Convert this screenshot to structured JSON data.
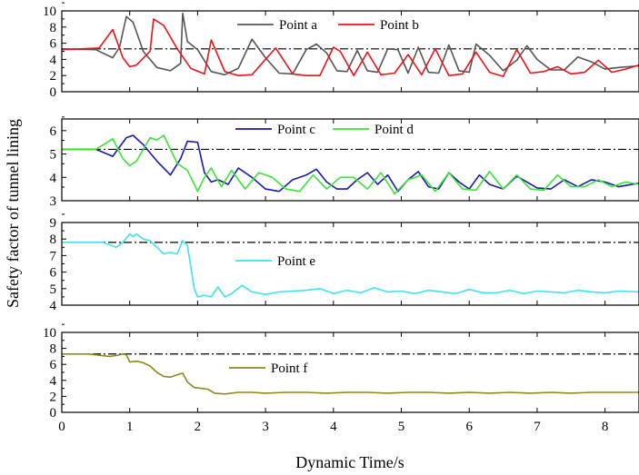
{
  "chart_data": {
    "type": "line",
    "xlabel": "Dynamic Time/s",
    "ylabel": "Safety factor of tunnel lining",
    "xlim": [
      0,
      8.5
    ],
    "x_ticks": [
      "0",
      "1",
      "2",
      "3",
      "4",
      "5",
      "6",
      "7",
      "8"
    ],
    "reference_line_style": "dash-dot",
    "panels": [
      {
        "ylim": [
          0,
          10
        ],
        "y_ticks": [
          "0",
          "2",
          "4",
          "6",
          "8",
          "10"
        ],
        "reference_value": 5.3,
        "legend_placement": "top-right",
        "series": [
          {
            "name": "Point a",
            "color": "#555555",
            "x": [
              0,
              0.5,
              0.75,
              0.85,
              0.95,
              1.05,
              1.2,
              1.4,
              1.6,
              1.75,
              1.78,
              1.85,
              2.0,
              2.2,
              2.4,
              2.6,
              2.8,
              3.0,
              3.2,
              3.4,
              3.6,
              3.75,
              3.9,
              4.05,
              4.2,
              4.35,
              4.5,
              4.65,
              4.8,
              4.95,
              5.1,
              5.25,
              5.4,
              5.55,
              5.7,
              5.85,
              6.0,
              6.1,
              6.3,
              6.5,
              6.7,
              6.85,
              7.0,
              7.2,
              7.4,
              7.6,
              7.8,
              8.0,
              8.2,
              8.5
            ],
            "y": [
              5.3,
              5.2,
              4.2,
              5.5,
              9.3,
              8.6,
              5.0,
              3.0,
              2.6,
              3.5,
              9.7,
              6.2,
              5.2,
              2.5,
              2.1,
              2.9,
              6.5,
              4.2,
              2.3,
              2.2,
              5.2,
              5.9,
              4.8,
              2.6,
              2.5,
              5.1,
              2.6,
              2.4,
              5.3,
              5.2,
              2.3,
              5.5,
              2.4,
              2.3,
              5.8,
              2.6,
              2.4,
              5.9,
              4.5,
              2.6,
              3.9,
              5.7,
              4.0,
              2.7,
              2.7,
              4.3,
              3.7,
              2.8,
              3.0,
              3.2
            ]
          },
          {
            "name": "Point b",
            "color": "#e8141b",
            "x": [
              0,
              0.55,
              0.75,
              0.9,
              1.0,
              1.1,
              1.3,
              1.35,
              1.5,
              1.7,
              1.9,
              2.1,
              2.2,
              2.4,
              2.6,
              2.8,
              3.0,
              3.15,
              3.4,
              3.6,
              3.8,
              4.0,
              4.1,
              4.3,
              4.5,
              4.7,
              4.9,
              5.1,
              5.3,
              5.5,
              5.7,
              5.9,
              6.1,
              6.3,
              6.5,
              6.7,
              6.9,
              7.1,
              7.3,
              7.5,
              7.7,
              7.9,
              8.1,
              8.3,
              8.5
            ],
            "y": [
              5.2,
              5.4,
              7.7,
              4.2,
              3.1,
              3.3,
              5.0,
              9.0,
              8.2,
              5.3,
              2.9,
              2.2,
              6.4,
              2.5,
              2.0,
              2.1,
              4.0,
              5.4,
              2.2,
              2.0,
              2.0,
              5.5,
              5.0,
              2.0,
              4.9,
              2.1,
              2.3,
              4.6,
              2.1,
              5.3,
              2.0,
              2.2,
              4.9,
              2.4,
              1.9,
              5.2,
              2.3,
              2.5,
              3.1,
              2.2,
              2.4,
              3.9,
              2.4,
              2.8,
              3.3
            ]
          }
        ]
      },
      {
        "ylim": [
          3,
          6.5
        ],
        "y_ticks": [
          "3",
          "4",
          "5",
          "6"
        ],
        "reference_value": 5.2,
        "legend_placement": "top-right",
        "series": [
          {
            "name": "Point c",
            "color": "#1a1aa8",
            "x": [
              0,
              0.5,
              0.75,
              0.85,
              0.95,
              1.05,
              1.2,
              1.4,
              1.6,
              1.75,
              1.85,
              2.0,
              2.1,
              2.2,
              2.3,
              2.45,
              2.6,
              2.8,
              3.0,
              3.2,
              3.4,
              3.6,
              3.75,
              3.9,
              4.05,
              4.2,
              4.35,
              4.5,
              4.65,
              4.8,
              4.95,
              5.1,
              5.25,
              5.4,
              5.55,
              5.7,
              5.85,
              6.0,
              6.15,
              6.3,
              6.5,
              6.7,
              6.85,
              7.0,
              7.2,
              7.4,
              7.6,
              7.8,
              8.0,
              8.2,
              8.5
            ],
            "y": [
              5.2,
              5.2,
              4.9,
              5.3,
              5.7,
              5.8,
              5.4,
              4.7,
              4.1,
              4.8,
              5.55,
              5.5,
              4.2,
              3.8,
              3.9,
              3.7,
              4.4,
              4.0,
              3.5,
              3.4,
              3.9,
              4.1,
              4.35,
              3.8,
              3.5,
              3.5,
              3.9,
              4.2,
              3.7,
              4.1,
              3.4,
              3.9,
              4.25,
              3.6,
              3.5,
              4.2,
              3.8,
              3.5,
              4.1,
              3.7,
              3.5,
              4.05,
              3.8,
              3.55,
              3.5,
              3.9,
              3.6,
              3.9,
              3.8,
              3.6,
              3.75
            ]
          },
          {
            "name": "Point d",
            "color": "#3de13b",
            "x": [
              0,
              0.5,
              0.75,
              0.9,
              1.0,
              1.1,
              1.3,
              1.4,
              1.5,
              1.6,
              1.7,
              1.85,
              2.0,
              2.1,
              2.2,
              2.35,
              2.5,
              2.7,
              2.9,
              3.1,
              3.3,
              3.5,
              3.7,
              3.9,
              4.1,
              4.3,
              4.5,
              4.7,
              4.9,
              5.1,
              5.3,
              5.5,
              5.7,
              5.9,
              6.1,
              6.3,
              6.5,
              6.7,
              6.9,
              7.1,
              7.3,
              7.5,
              7.7,
              7.9,
              8.1,
              8.3,
              8.5
            ],
            "y": [
              5.2,
              5.2,
              5.65,
              4.8,
              4.5,
              4.7,
              5.7,
              5.6,
              5.8,
              5.2,
              4.6,
              4.3,
              3.4,
              4.0,
              4.4,
              3.6,
              4.3,
              3.5,
              4.2,
              4.0,
              3.5,
              3.4,
              4.1,
              3.5,
              4.0,
              4.0,
              3.5,
              4.2,
              3.3,
              3.9,
              4.1,
              3.4,
              4.2,
              3.5,
              3.45,
              4.25,
              3.5,
              4.1,
              3.5,
              3.45,
              4.1,
              3.6,
              3.6,
              3.9,
              3.6,
              3.8,
              3.7
            ]
          }
        ]
      },
      {
        "ylim": [
          4,
          9
        ],
        "y_ticks": [
          "4",
          "5",
          "6",
          "7",
          "8",
          "9"
        ],
        "reference_value": 7.8,
        "legend_placement": "center",
        "series": [
          {
            "name": "Point e",
            "color": "#3fe3ee",
            "x": [
              0,
              0.6,
              0.8,
              0.9,
              1.0,
              1.05,
              1.1,
              1.2,
              1.3,
              1.4,
              1.5,
              1.6,
              1.7,
              1.78,
              1.85,
              1.95,
              2.0,
              2.1,
              2.2,
              2.3,
              2.4,
              2.5,
              2.65,
              2.8,
              3.0,
              3.2,
              3.4,
              3.6,
              3.8,
              4.0,
              4.2,
              4.4,
              4.6,
              4.8,
              5.0,
              5.2,
              5.4,
              5.6,
              5.8,
              6.0,
              6.2,
              6.4,
              6.6,
              6.8,
              7.0,
              7.2,
              7.4,
              7.6,
              7.8,
              8.0,
              8.2,
              8.5
            ],
            "y": [
              7.8,
              7.8,
              7.5,
              7.8,
              8.3,
              8.15,
              8.3,
              8.0,
              7.9,
              7.5,
              7.1,
              7.2,
              7.1,
              7.9,
              7.6,
              5.0,
              4.5,
              4.6,
              4.5,
              5.1,
              4.5,
              4.7,
              5.2,
              4.8,
              4.65,
              4.8,
              4.85,
              4.9,
              5.0,
              4.7,
              4.9,
              4.75,
              5.05,
              4.8,
              4.85,
              4.7,
              4.9,
              4.8,
              4.7,
              4.95,
              4.75,
              4.75,
              4.9,
              4.7,
              4.85,
              4.8,
              4.75,
              4.9,
              4.8,
              4.75,
              4.85,
              4.8
            ]
          }
        ]
      },
      {
        "ylim": [
          0,
          10
        ],
        "y_ticks": [
          "0",
          "2",
          "4",
          "6",
          "8",
          "10"
        ],
        "reference_value": 7.3,
        "legend_placement": "center-left",
        "series": [
          {
            "name": "Point f",
            "color": "#8c8a1e",
            "x": [
              0,
              0.4,
              0.7,
              0.8,
              0.9,
              0.95,
              1.0,
              1.1,
              1.2,
              1.3,
              1.4,
              1.5,
              1.6,
              1.7,
              1.78,
              1.85,
              1.95,
              2.05,
              2.15,
              2.25,
              2.4,
              2.6,
              2.8,
              3.0,
              3.3,
              3.6,
              3.9,
              4.2,
              4.5,
              4.8,
              5.1,
              5.4,
              5.7,
              6.0,
              6.3,
              6.6,
              6.9,
              7.2,
              7.5,
              7.8,
              8.1,
              8.5
            ],
            "y": [
              7.3,
              7.3,
              7.0,
              7.1,
              7.3,
              7.2,
              6.3,
              6.4,
              6.2,
              5.8,
              5.0,
              4.5,
              4.4,
              4.7,
              4.9,
              3.8,
              3.1,
              3.0,
              2.9,
              2.4,
              2.3,
              2.5,
              2.5,
              2.4,
              2.5,
              2.5,
              2.4,
              2.5,
              2.5,
              2.4,
              2.5,
              2.5,
              2.4,
              2.5,
              2.4,
              2.5,
              2.4,
              2.5,
              2.4,
              2.5,
              2.5,
              2.5
            ]
          }
        ]
      }
    ]
  }
}
